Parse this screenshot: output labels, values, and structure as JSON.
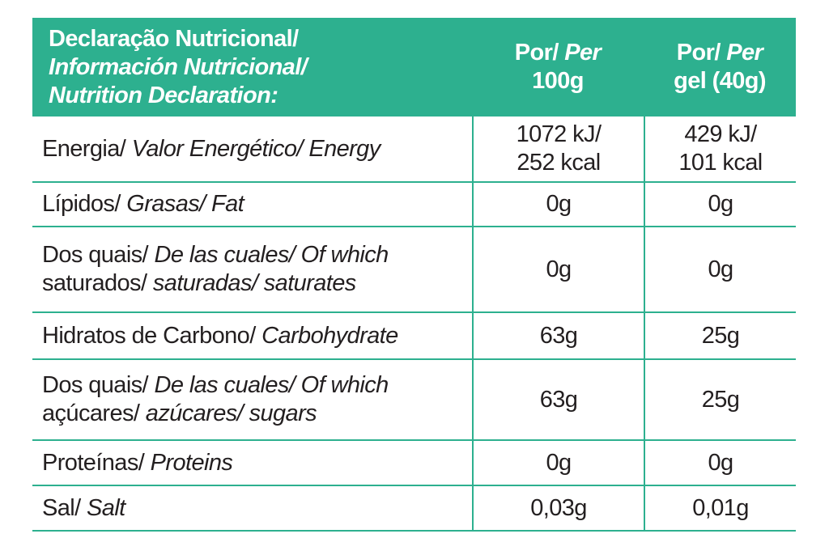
{
  "header": {
    "title_line1": "Declaração Nutricional/",
    "title_line2": "Información Nutricional/",
    "title_line3": "Nutrition Declaration:",
    "col1_line1_regular": "Por/",
    "col1_line1_italic": "Per",
    "col1_line2": "100g",
    "col2_line1_regular": "Por/",
    "col2_line1_italic": "Per",
    "col2_line2": "gel (40g)"
  },
  "rows": [
    {
      "label_pt": "Energia/",
      "label_es_en": "Valor Energético/ Energy",
      "per100_line1": "1072 kJ/",
      "per100_line2": "252 kcal",
      "pergel_line1": "429 kJ/",
      "pergel_line2": "101 kcal"
    },
    {
      "label_pt": "Lípidos/",
      "label_es_en": "Grasas/ Fat",
      "per100": "0g",
      "pergel": "0g"
    },
    {
      "label_line1_pt": "Dos quais/",
      "label_line1_es_en": "De las cuales/ Of which",
      "label_line2_pt": "saturados/",
      "label_line2_es_en": "saturadas/ saturates",
      "per100": "0g",
      "pergel": "0g"
    },
    {
      "label_pt": "Hidratos de Carbono/",
      "label_es_en": "Carbohydrate",
      "per100": "63g",
      "pergel": "25g"
    },
    {
      "label_line1_pt": "Dos quais/",
      "label_line1_es_en": "De las cuales/ Of which",
      "label_line2_pt": "açúcares/",
      "label_line2_es_en": "azúcares/ sugars",
      "per100": "63g",
      "pergel": "25g"
    },
    {
      "label_pt": "Proteínas/",
      "label_es_en": "Proteins",
      "per100": "0g",
      "pergel": "0g"
    },
    {
      "label_pt": "Sal/",
      "label_es_en": "Salt",
      "per100": "0,03g",
      "pergel": "0,01g"
    }
  ],
  "colors": {
    "accent": "#2db08f",
    "header_text": "#ffffff",
    "body_text": "#231f20"
  }
}
